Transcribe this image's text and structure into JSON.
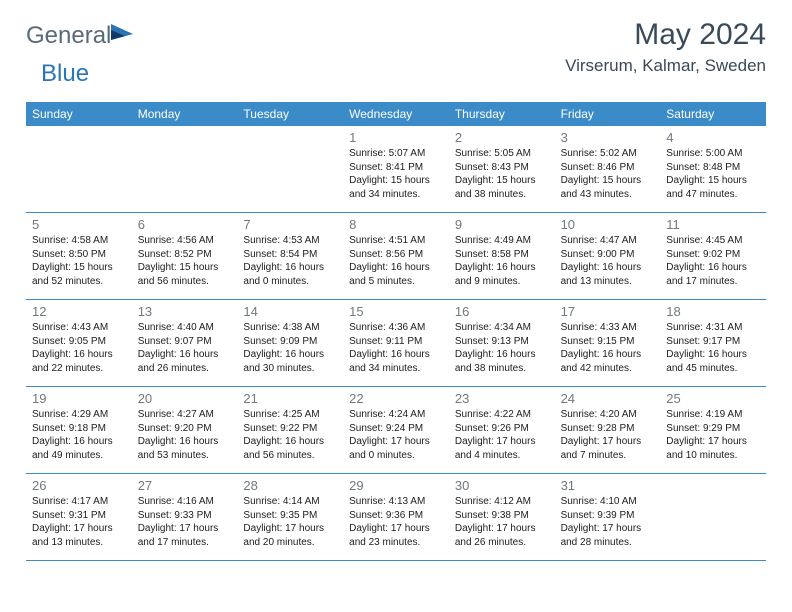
{
  "brand": {
    "general": "General",
    "blue": "Blue"
  },
  "title": "May 2024",
  "location": "Virserum, Kalmar, Sweden",
  "dayNames": [
    "Sunday",
    "Monday",
    "Tuesday",
    "Wednesday",
    "Thursday",
    "Friday",
    "Saturday"
  ],
  "colors": {
    "headerBar": "#3b8bc9",
    "headerText": "#ffffff",
    "dayNum": "#707880",
    "info": "#202020",
    "titleColor": "#3a4a58",
    "logoGray": "#5a6a78",
    "logoBlue": "#2a75b3",
    "logoDark": "#0f3a66"
  },
  "weeks": [
    [
      null,
      null,
      null,
      {
        "n": "1",
        "sr": "5:07 AM",
        "ss": "8:41 PM",
        "dl": "15 hours and 34 minutes."
      },
      {
        "n": "2",
        "sr": "5:05 AM",
        "ss": "8:43 PM",
        "dl": "15 hours and 38 minutes."
      },
      {
        "n": "3",
        "sr": "5:02 AM",
        "ss": "8:46 PM",
        "dl": "15 hours and 43 minutes."
      },
      {
        "n": "4",
        "sr": "5:00 AM",
        "ss": "8:48 PM",
        "dl": "15 hours and 47 minutes."
      }
    ],
    [
      {
        "n": "5",
        "sr": "4:58 AM",
        "ss": "8:50 PM",
        "dl": "15 hours and 52 minutes."
      },
      {
        "n": "6",
        "sr": "4:56 AM",
        "ss": "8:52 PM",
        "dl": "15 hours and 56 minutes."
      },
      {
        "n": "7",
        "sr": "4:53 AM",
        "ss": "8:54 PM",
        "dl": "16 hours and 0 minutes."
      },
      {
        "n": "8",
        "sr": "4:51 AM",
        "ss": "8:56 PM",
        "dl": "16 hours and 5 minutes."
      },
      {
        "n": "9",
        "sr": "4:49 AM",
        "ss": "8:58 PM",
        "dl": "16 hours and 9 minutes."
      },
      {
        "n": "10",
        "sr": "4:47 AM",
        "ss": "9:00 PM",
        "dl": "16 hours and 13 minutes."
      },
      {
        "n": "11",
        "sr": "4:45 AM",
        "ss": "9:02 PM",
        "dl": "16 hours and 17 minutes."
      }
    ],
    [
      {
        "n": "12",
        "sr": "4:43 AM",
        "ss": "9:05 PM",
        "dl": "16 hours and 22 minutes."
      },
      {
        "n": "13",
        "sr": "4:40 AM",
        "ss": "9:07 PM",
        "dl": "16 hours and 26 minutes."
      },
      {
        "n": "14",
        "sr": "4:38 AM",
        "ss": "9:09 PM",
        "dl": "16 hours and 30 minutes."
      },
      {
        "n": "15",
        "sr": "4:36 AM",
        "ss": "9:11 PM",
        "dl": "16 hours and 34 minutes."
      },
      {
        "n": "16",
        "sr": "4:34 AM",
        "ss": "9:13 PM",
        "dl": "16 hours and 38 minutes."
      },
      {
        "n": "17",
        "sr": "4:33 AM",
        "ss": "9:15 PM",
        "dl": "16 hours and 42 minutes."
      },
      {
        "n": "18",
        "sr": "4:31 AM",
        "ss": "9:17 PM",
        "dl": "16 hours and 45 minutes."
      }
    ],
    [
      {
        "n": "19",
        "sr": "4:29 AM",
        "ss": "9:18 PM",
        "dl": "16 hours and 49 minutes."
      },
      {
        "n": "20",
        "sr": "4:27 AM",
        "ss": "9:20 PM",
        "dl": "16 hours and 53 minutes."
      },
      {
        "n": "21",
        "sr": "4:25 AM",
        "ss": "9:22 PM",
        "dl": "16 hours and 56 minutes."
      },
      {
        "n": "22",
        "sr": "4:24 AM",
        "ss": "9:24 PM",
        "dl": "17 hours and 0 minutes."
      },
      {
        "n": "23",
        "sr": "4:22 AM",
        "ss": "9:26 PM",
        "dl": "17 hours and 4 minutes."
      },
      {
        "n": "24",
        "sr": "4:20 AM",
        "ss": "9:28 PM",
        "dl": "17 hours and 7 minutes."
      },
      {
        "n": "25",
        "sr": "4:19 AM",
        "ss": "9:29 PM",
        "dl": "17 hours and 10 minutes."
      }
    ],
    [
      {
        "n": "26",
        "sr": "4:17 AM",
        "ss": "9:31 PM",
        "dl": "17 hours and 13 minutes."
      },
      {
        "n": "27",
        "sr": "4:16 AM",
        "ss": "9:33 PM",
        "dl": "17 hours and 17 minutes."
      },
      {
        "n": "28",
        "sr": "4:14 AM",
        "ss": "9:35 PM",
        "dl": "17 hours and 20 minutes."
      },
      {
        "n": "29",
        "sr": "4:13 AM",
        "ss": "9:36 PM",
        "dl": "17 hours and 23 minutes."
      },
      {
        "n": "30",
        "sr": "4:12 AM",
        "ss": "9:38 PM",
        "dl": "17 hours and 26 minutes."
      },
      {
        "n": "31",
        "sr": "4:10 AM",
        "ss": "9:39 PM",
        "dl": "17 hours and 28 minutes."
      },
      null
    ]
  ],
  "labels": {
    "sunrise": "Sunrise:",
    "sunset": "Sunset:",
    "daylight": "Daylight:"
  }
}
